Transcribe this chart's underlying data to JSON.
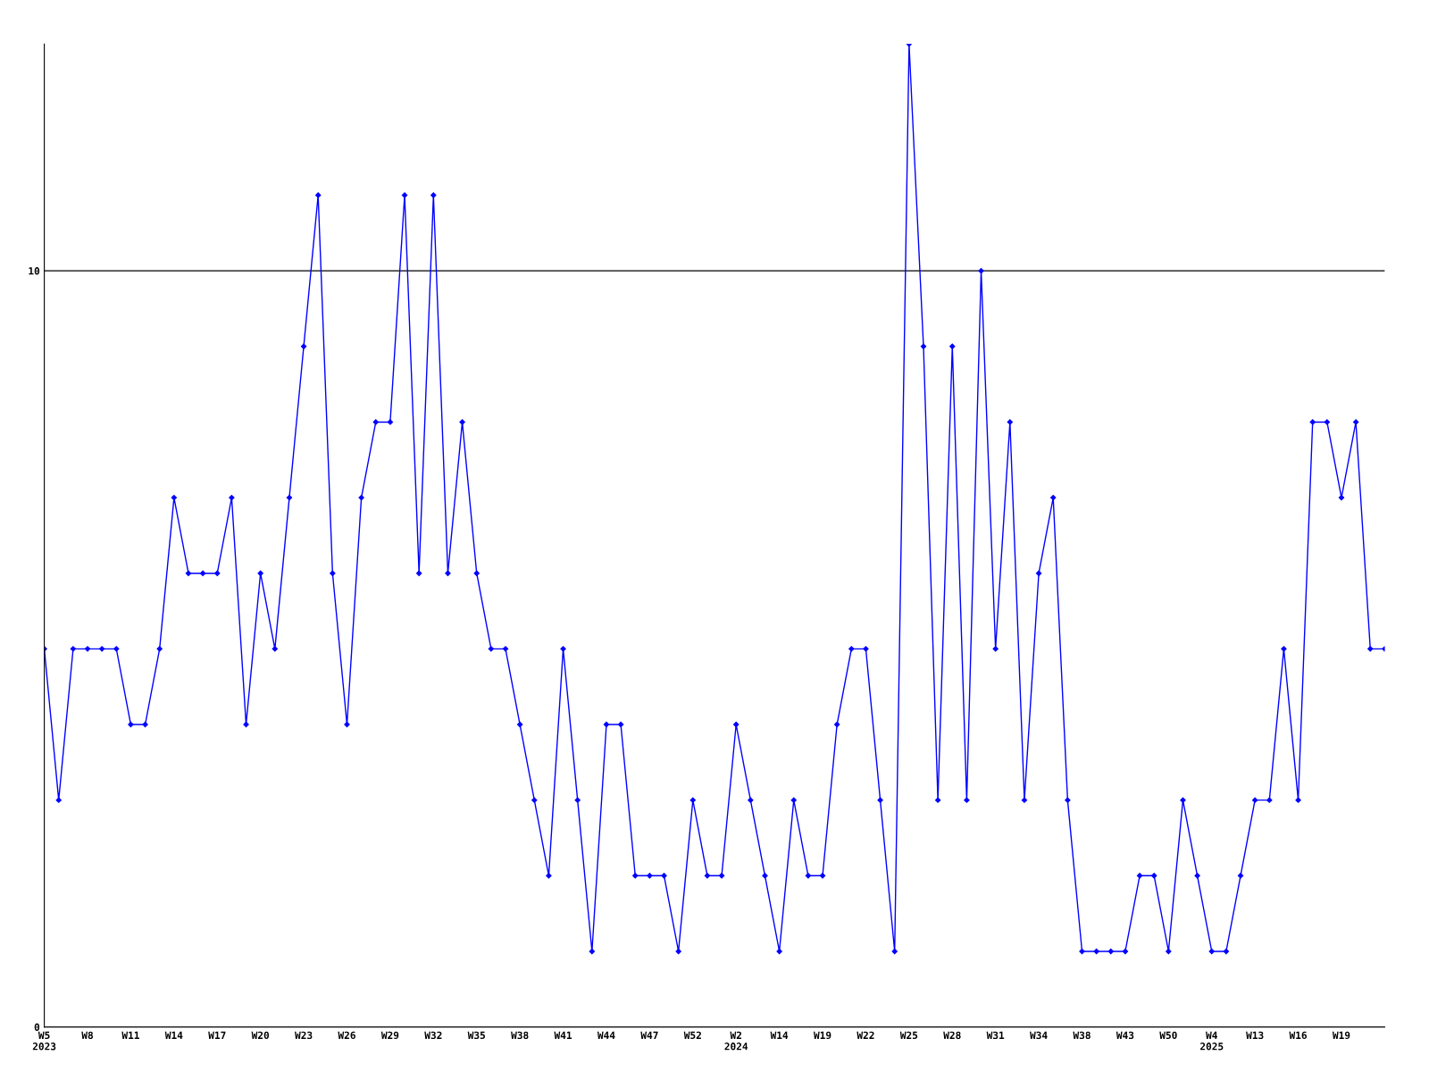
{
  "chart_data": {
    "type": "line",
    "categories": [
      "W5\n2023",
      null,
      null,
      "W8",
      null,
      null,
      "W11",
      null,
      null,
      "W14",
      null,
      null,
      "W17",
      null,
      null,
      "W20",
      null,
      null,
      "W23",
      null,
      null,
      "W26",
      null,
      null,
      "W29",
      null,
      null,
      "W32",
      null,
      null,
      "W35",
      null,
      null,
      "W38",
      null,
      null,
      "W41",
      null,
      null,
      "W44",
      null,
      null,
      "W47",
      null,
      null,
      "W52",
      null,
      null,
      "W2\n2024",
      null,
      null,
      "W14",
      null,
      null,
      "W19",
      null,
      null,
      "W22",
      null,
      null,
      "W25",
      null,
      null,
      "W28",
      null,
      null,
      "W31",
      null,
      null,
      "W34",
      null,
      null,
      "W38",
      null,
      null,
      "W43",
      null,
      null,
      "W50",
      null,
      null,
      "W4\n2025",
      null,
      null,
      "W13",
      null,
      null,
      "W16",
      null,
      null,
      "W19",
      null,
      null,
      null
    ],
    "series": [
      {
        "color": "#0000ff",
        "values": [
          5,
          3,
          5,
          5,
          5,
          5,
          4,
          4,
          5,
          7,
          6,
          6,
          6,
          7,
          4,
          6,
          5,
          7,
          9,
          11,
          6,
          4,
          7,
          8,
          8,
          11,
          6,
          11,
          6,
          8,
          6,
          5,
          5,
          4,
          3,
          2,
          5,
          3,
          1,
          4,
          4,
          2,
          2,
          2,
          1,
          3,
          2,
          2,
          4,
          3,
          2,
          1,
          3,
          2,
          2,
          4,
          5,
          5,
          3,
          1,
          13,
          9,
          3,
          9,
          3,
          10,
          5,
          8,
          3,
          6,
          7,
          3,
          1,
          1,
          1,
          1,
          2,
          2,
          1,
          3,
          2,
          1,
          1,
          2,
          3,
          3,
          5,
          3,
          8,
          8,
          7,
          8,
          5,
          5
        ]
      }
    ],
    "ylim": [
      0,
      13
    ],
    "yticks": [
      0,
      10
    ],
    "grid": "y",
    "marker": "diamond",
    "line_style": "solid"
  }
}
